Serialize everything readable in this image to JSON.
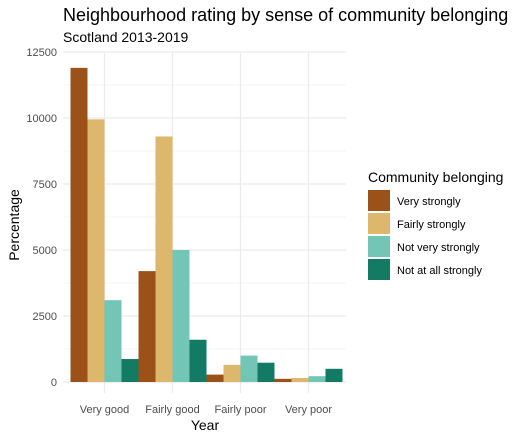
{
  "chart_data": {
    "type": "bar",
    "title": "Neighbourhood rating by sense of community belonging",
    "subtitle": "Scotland 2013-2019",
    "xlabel": "Year",
    "ylabel": "Percentage",
    "categories": [
      "Very good",
      "Fairly good",
      "Fairly poor",
      "Very poor"
    ],
    "ylim": [
      0,
      12500
    ],
    "yticks": [
      0,
      2500,
      5000,
      7500,
      10000,
      12500
    ],
    "grid": true,
    "legend": {
      "title": "Community belonging",
      "position": "right"
    },
    "series": [
      {
        "name": "Very strongly",
        "color": "#9c5118",
        "values": [
          11900,
          4200,
          280,
          120
        ]
      },
      {
        "name": "Fairly strongly",
        "color": "#dcb76c",
        "values": [
          9950,
          9300,
          650,
          150
        ]
      },
      {
        "name": "Not very strongly",
        "color": "#73c6b6",
        "values": [
          3100,
          5000,
          1000,
          220
        ]
      },
      {
        "name": "Not at all strongly",
        "color": "#137a63",
        "values": [
          870,
          1600,
          730,
          500
        ]
      }
    ]
  }
}
